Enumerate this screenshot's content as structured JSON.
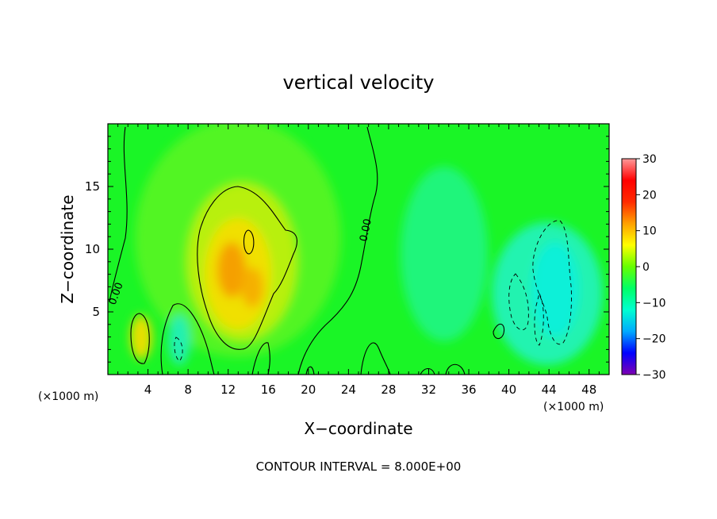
{
  "chart_data": {
    "type": "heatmap",
    "title": "vertical velocity",
    "xlabel": "X−coordinate",
    "ylabel": "Z−coordinate",
    "x_unit_left": "(×1000 m)",
    "x_unit_right": "(×1000 m)",
    "footer": "CONTOUR INTERVAL = 8.000E+00",
    "contour_label": "0.00",
    "xlim": [
      0,
      50
    ],
    "ylim": [
      0,
      20
    ],
    "x_ticks": [
      4,
      8,
      12,
      16,
      20,
      24,
      28,
      32,
      36,
      40,
      44,
      48
    ],
    "y_ticks": [
      5,
      10,
      15
    ],
    "colorbar": {
      "min": -30,
      "max": 30,
      "ticks": [
        30,
        20,
        10,
        0,
        -10,
        -20,
        -30
      ],
      "tick_labels": [
        "30",
        "20",
        "10",
        "0",
        "−10",
        "−20",
        "−30"
      ],
      "colors": [
        "#7f00b2",
        "#0000ff",
        "#00aaff",
        "#00ffd0",
        "#00ff66",
        "#66ff00",
        "#ffff00",
        "#ffa000",
        "#ff2a00",
        "#ff0000",
        "#ff9999"
      ]
    },
    "features": [
      {
        "name": "updraft-core",
        "x": 13.2,
        "z": 8.5,
        "peak": 14
      },
      {
        "name": "updraft-small",
        "x": 3.2,
        "z": 3.2,
        "peak": 10
      },
      {
        "name": "downdraft-east",
        "x": 45,
        "z": 6.5,
        "peak": -9
      },
      {
        "name": "downdraft-small",
        "x": 7,
        "z": 2.4,
        "peak": -7
      }
    ]
  }
}
